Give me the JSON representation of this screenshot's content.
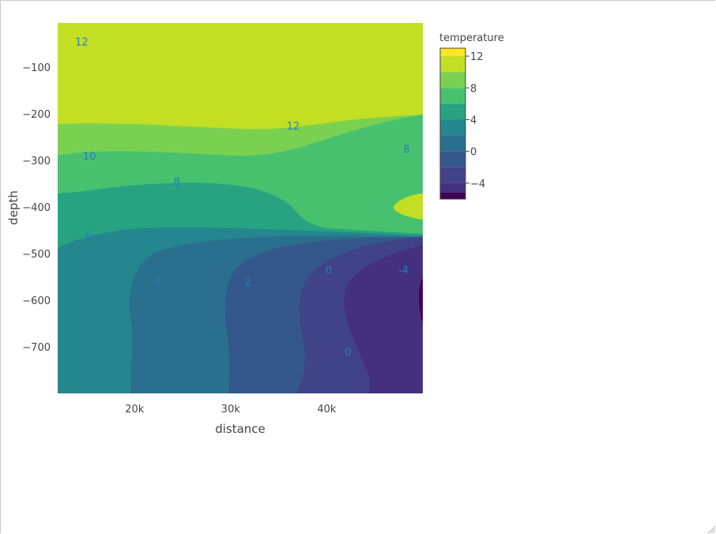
{
  "chart_data": {
    "type": "contour",
    "xlabel": "distance",
    "ylabel": "depth",
    "x_ticks": [
      {
        "value": 20000,
        "label": "20k"
      },
      {
        "value": 30000,
        "label": "30k"
      },
      {
        "value": 40000,
        "label": "40k"
      }
    ],
    "y_ticks": [
      {
        "value": -100,
        "label": "−100"
      },
      {
        "value": -200,
        "label": "−200"
      },
      {
        "value": -300,
        "label": "−300"
      },
      {
        "value": -400,
        "label": "−400"
      },
      {
        "value": -500,
        "label": "−500"
      },
      {
        "value": -600,
        "label": "−600"
      },
      {
        "value": -700,
        "label": "−700"
      }
    ],
    "xlim": [
      12000,
      50000
    ],
    "ylim": [
      -800,
      -5
    ],
    "colorbar": {
      "title": "temperature",
      "colorscale": "Viridis",
      "range": [
        -6,
        13
      ],
      "contour_step": 2,
      "ticks": [
        {
          "value": 12,
          "label": "12"
        },
        {
          "value": 8,
          "label": "8"
        },
        {
          "value": 4,
          "label": "4"
        },
        {
          "value": 0,
          "label": "0"
        },
        {
          "value": -4,
          "label": "−4"
        }
      ]
    },
    "contour_labels": [
      {
        "text": "12",
        "x": 14500,
        "y": -45
      },
      {
        "text": "12",
        "x": 36500,
        "y": -225
      },
      {
        "text": "10",
        "x": 15300,
        "y": -290
      },
      {
        "text": "8",
        "x": 24400,
        "y": -345
      },
      {
        "text": "8",
        "x": 48300,
        "y": -275
      },
      {
        "text": "6",
        "x": 15200,
        "y": -460
      },
      {
        "text": "4",
        "x": 22400,
        "y": -560
      },
      {
        "text": "2",
        "x": 31800,
        "y": -560
      },
      {
        "text": "0",
        "x": 40200,
        "y": -535
      },
      {
        "text": "-4",
        "x": 48000,
        "y": -535
      },
      {
        "text": "0",
        "x": 42200,
        "y": -710
      }
    ],
    "grid": false,
    "legend": "colorbar-right"
  }
}
